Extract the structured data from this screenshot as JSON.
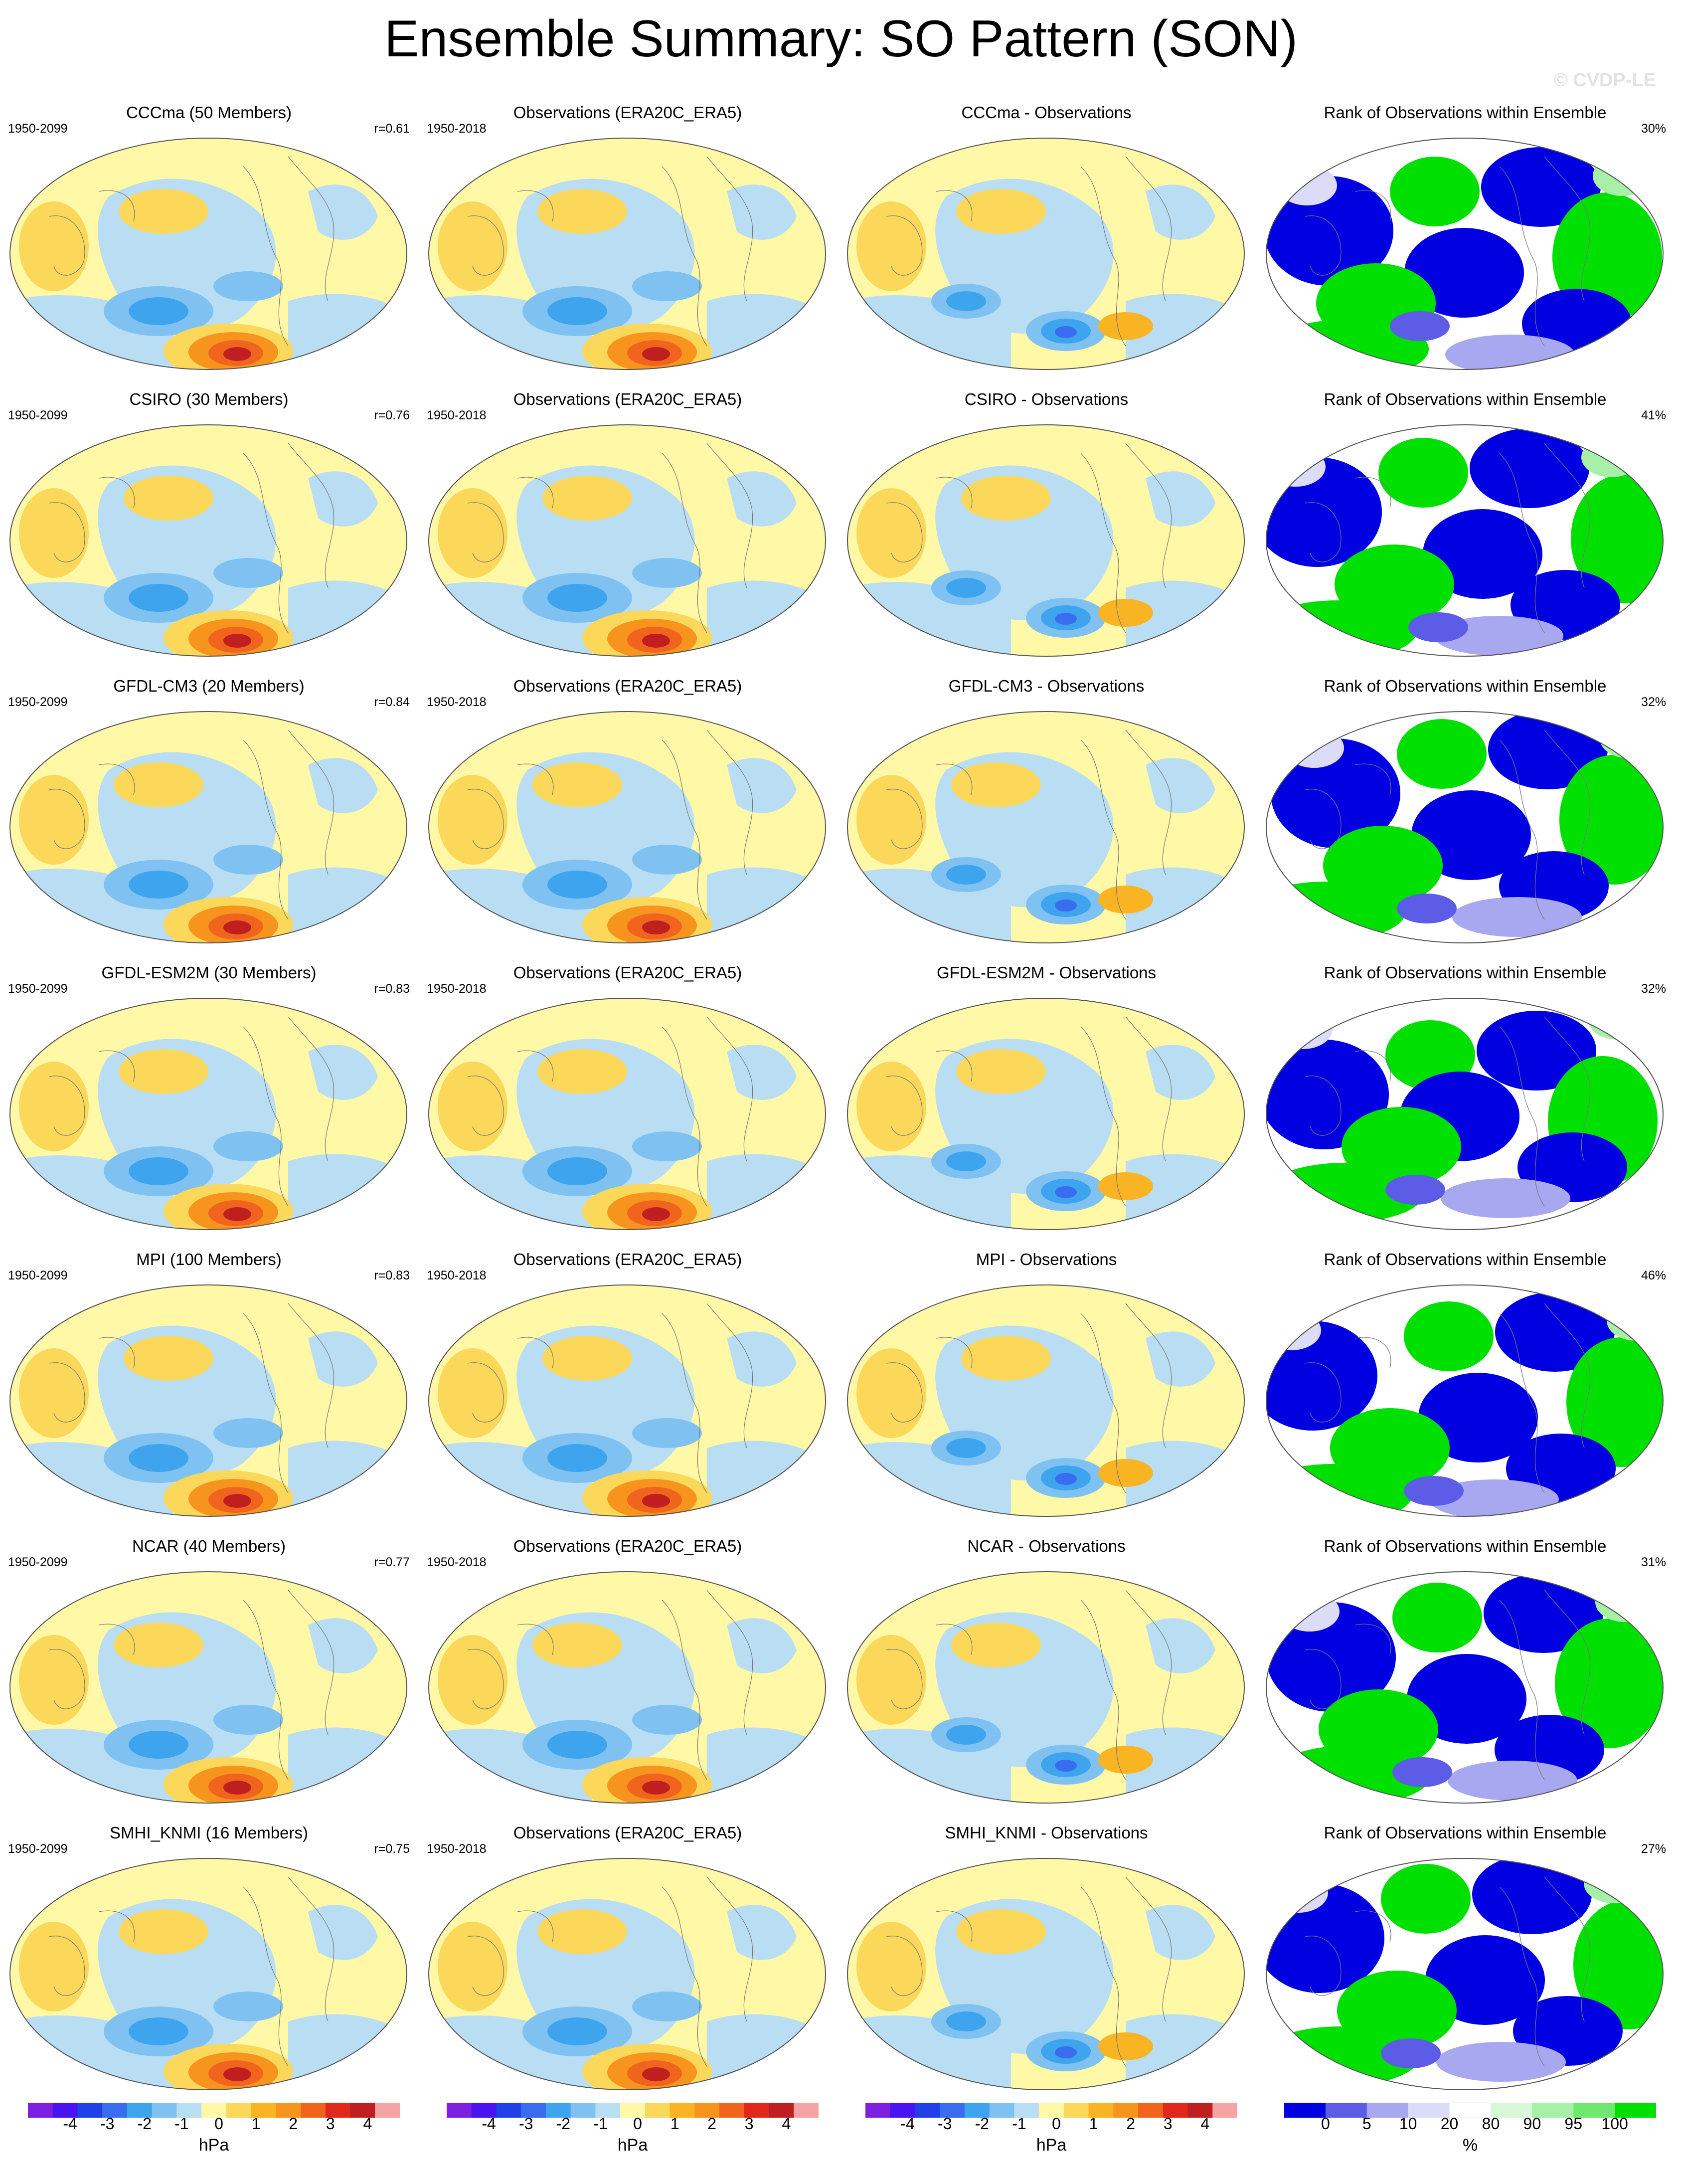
{
  "title": "Ensemble Summary: SO Pattern (SON)",
  "watermark": "© CVDP-LE",
  "colors": {
    "map_neg": [
      "#7c1fe0",
      "#4a14f0",
      "#2040e8",
      "#3a6cf0",
      "#3ea4ee",
      "#7fc2f2",
      "#b9def4"
    ],
    "map_pos": [
      "#fff8a6",
      "#fbd75a",
      "#f9b423",
      "#f7941e",
      "#f0641e",
      "#e0281b",
      "#c01f1f",
      "#f6a3a6"
    ],
    "rank": [
      "#0000e0",
      "#5c5ce6",
      "#a8a8f0",
      "#dcdcf8",
      "#ffffff",
      "#d8f8d8",
      "#a8f0a8",
      "#70e870",
      "#00e000"
    ]
  },
  "rows": [
    {
      "model": "CCCma (50 Members)",
      "years": "1950-2099",
      "r": "r=0.61",
      "obs_title": "Observations (ERA20C_ERA5)",
      "obs_years": "1950-2018",
      "diff_title": "CCCma - Observations",
      "rank_title": "Rank of Observations within Ensemble",
      "rank_pct": "30%"
    },
    {
      "model": "CSIRO (30 Members)",
      "years": "1950-2099",
      "r": "r=0.76",
      "obs_title": "Observations (ERA20C_ERA5)",
      "obs_years": "1950-2018",
      "diff_title": "CSIRO - Observations",
      "rank_title": "Rank of Observations within Ensemble",
      "rank_pct": "41%"
    },
    {
      "model": "GFDL-CM3 (20 Members)",
      "years": "1950-2099",
      "r": "r=0.84",
      "obs_title": "Observations (ERA20C_ERA5)",
      "obs_years": "1950-2018",
      "diff_title": "GFDL-CM3 - Observations",
      "rank_title": "Rank of Observations within Ensemble",
      "rank_pct": "32%"
    },
    {
      "model": "GFDL-ESM2M (30 Members)",
      "years": "1950-2099",
      "r": "r=0.83",
      "obs_title": "Observations (ERA20C_ERA5)",
      "obs_years": "1950-2018",
      "diff_title": "GFDL-ESM2M - Observations",
      "rank_title": "Rank of Observations within Ensemble",
      "rank_pct": "32%"
    },
    {
      "model": "MPI (100 Members)",
      "years": "1950-2099",
      "r": "r=0.83",
      "obs_title": "Observations (ERA20C_ERA5)",
      "obs_years": "1950-2018",
      "diff_title": "MPI - Observations",
      "rank_title": "Rank of Observations within Ensemble",
      "rank_pct": "46%"
    },
    {
      "model": "NCAR (40 Members)",
      "years": "1950-2099",
      "r": "r=0.77",
      "obs_title": "Observations (ERA20C_ERA5)",
      "obs_years": "1950-2018",
      "diff_title": "NCAR - Observations",
      "rank_title": "Rank of Observations within Ensemble",
      "rank_pct": "31%"
    },
    {
      "model": "SMHI_KNMI (16 Members)",
      "years": "1950-2099",
      "r": "r=0.75",
      "obs_title": "Observations (ERA20C_ERA5)",
      "obs_years": "1950-2018",
      "diff_title": "SMHI_KNMI - Observations",
      "rank_title": "Rank of Observations within Ensemble",
      "rank_pct": "27%"
    }
  ],
  "colorbars": {
    "hpa_ticks": [
      "-4",
      "-3",
      "-2",
      "-1",
      "0",
      "1",
      "2",
      "3",
      "4"
    ],
    "hpa_unit": "hPa",
    "rank_ticks": [
      "0",
      "5",
      "10",
      "20",
      "80",
      "90",
      "95",
      "100"
    ],
    "rank_unit": "%"
  }
}
